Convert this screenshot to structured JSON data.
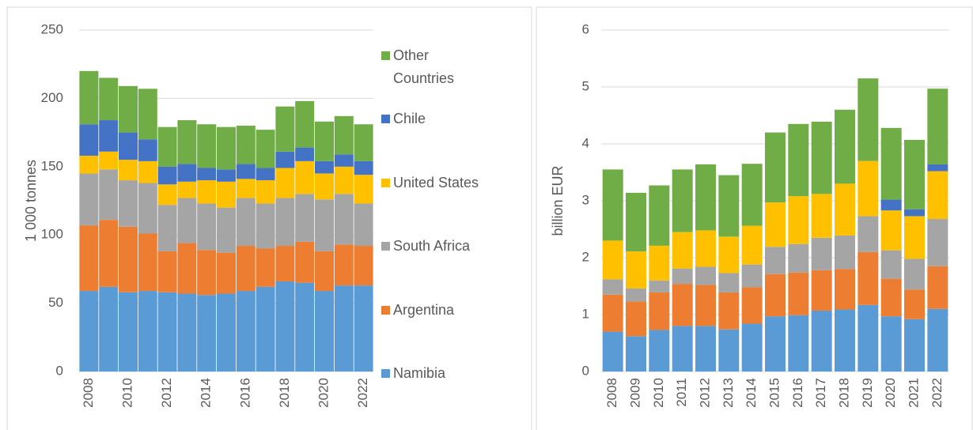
{
  "chart_data": [
    {
      "type": "bar",
      "stacked": true,
      "ylabel": "1 000 tonnes",
      "categories": [
        "2008",
        null,
        "2010",
        null,
        "2012",
        null,
        "2014",
        null,
        "2016",
        null,
        "2018",
        null,
        "2020",
        null,
        "2022"
      ],
      "ylim": [
        0,
        250
      ],
      "yticks": [
        0,
        50,
        100,
        150,
        200,
        250
      ],
      "grid": true,
      "legend": "right",
      "series": [
        {
          "name": "Namibia",
          "color": "#5b9bd5",
          "values": [
            59,
            62,
            58,
            59,
            58,
            57,
            56,
            57,
            59,
            62,
            66,
            65,
            59,
            63,
            63
          ]
        },
        {
          "name": "Argentina",
          "color": "#ed7d31",
          "values": [
            48,
            49,
            48,
            42,
            30,
            37,
            33,
            30,
            33,
            28,
            26,
            30,
            29,
            30,
            29
          ]
        },
        {
          "name": "South Africa",
          "color": "#a5a5a5",
          "values": [
            38,
            37,
            34,
            37,
            34,
            33,
            34,
            33,
            35,
            33,
            35,
            35,
            38,
            37,
            31
          ]
        },
        {
          "name": "United States",
          "color": "#ffc000",
          "values": [
            13,
            13,
            15,
            16,
            15,
            12,
            17,
            19,
            14,
            17,
            22,
            24,
            19,
            20,
            21
          ]
        },
        {
          "name": "Chile",
          "color": "#4472c4",
          "values": [
            23,
            23,
            20,
            16,
            13,
            13,
            9,
            9,
            11,
            9,
            12,
            10,
            9,
            9,
            10
          ]
        },
        {
          "name": "Other Countries",
          "color": "#70ad47",
          "values": [
            39,
            31,
            34,
            37,
            29,
            32,
            32,
            31,
            28,
            28,
            33,
            34,
            29,
            28,
            27
          ]
        }
      ]
    },
    {
      "type": "bar",
      "stacked": true,
      "ylabel": "billion EUR",
      "categories": [
        "2008",
        "2009",
        "2010",
        "2011",
        "2012",
        "2013",
        "2014",
        "2015",
        "2016",
        "2017",
        "2018",
        "2019",
        "2020",
        "2021",
        "2022"
      ],
      "ylim": [
        0,
        6
      ],
      "yticks": [
        0,
        1,
        2,
        3,
        4,
        5,
        6
      ],
      "grid": true,
      "series": [
        {
          "color": "#5b9bd5",
          "values": [
            0.7,
            0.62,
            0.73,
            0.8,
            0.8,
            0.74,
            0.84,
            0.97,
            0.99,
            1.07,
            1.09,
            1.17,
            0.97,
            0.92,
            1.1
          ]
        },
        {
          "color": "#ed7d31",
          "values": [
            0.65,
            0.61,
            0.66,
            0.74,
            0.72,
            0.65,
            0.64,
            0.74,
            0.75,
            0.71,
            0.71,
            0.93,
            0.66,
            0.52,
            0.75
          ]
        },
        {
          "color": "#a5a5a5",
          "values": [
            0.27,
            0.23,
            0.21,
            0.27,
            0.32,
            0.34,
            0.4,
            0.48,
            0.5,
            0.57,
            0.59,
            0.63,
            0.5,
            0.54,
            0.83
          ]
        },
        {
          "color": "#ffc000",
          "values": [
            0.68,
            0.65,
            0.61,
            0.64,
            0.64,
            0.64,
            0.68,
            0.78,
            0.84,
            0.77,
            0.91,
            0.97,
            0.7,
            0.75,
            0.84
          ]
        },
        {
          "color": "#4472c4",
          "values": [
            0,
            0,
            0,
            0,
            0,
            0,
            0,
            0,
            0,
            0,
            0,
            0,
            0.19,
            0.12,
            0.12
          ]
        },
        {
          "color": "#70ad47",
          "values": [
            1.25,
            1.03,
            1.06,
            1.1,
            1.16,
            1.08,
            1.09,
            1.23,
            1.27,
            1.27,
            1.3,
            1.45,
            1.26,
            1.22,
            1.33
          ]
        }
      ]
    }
  ]
}
